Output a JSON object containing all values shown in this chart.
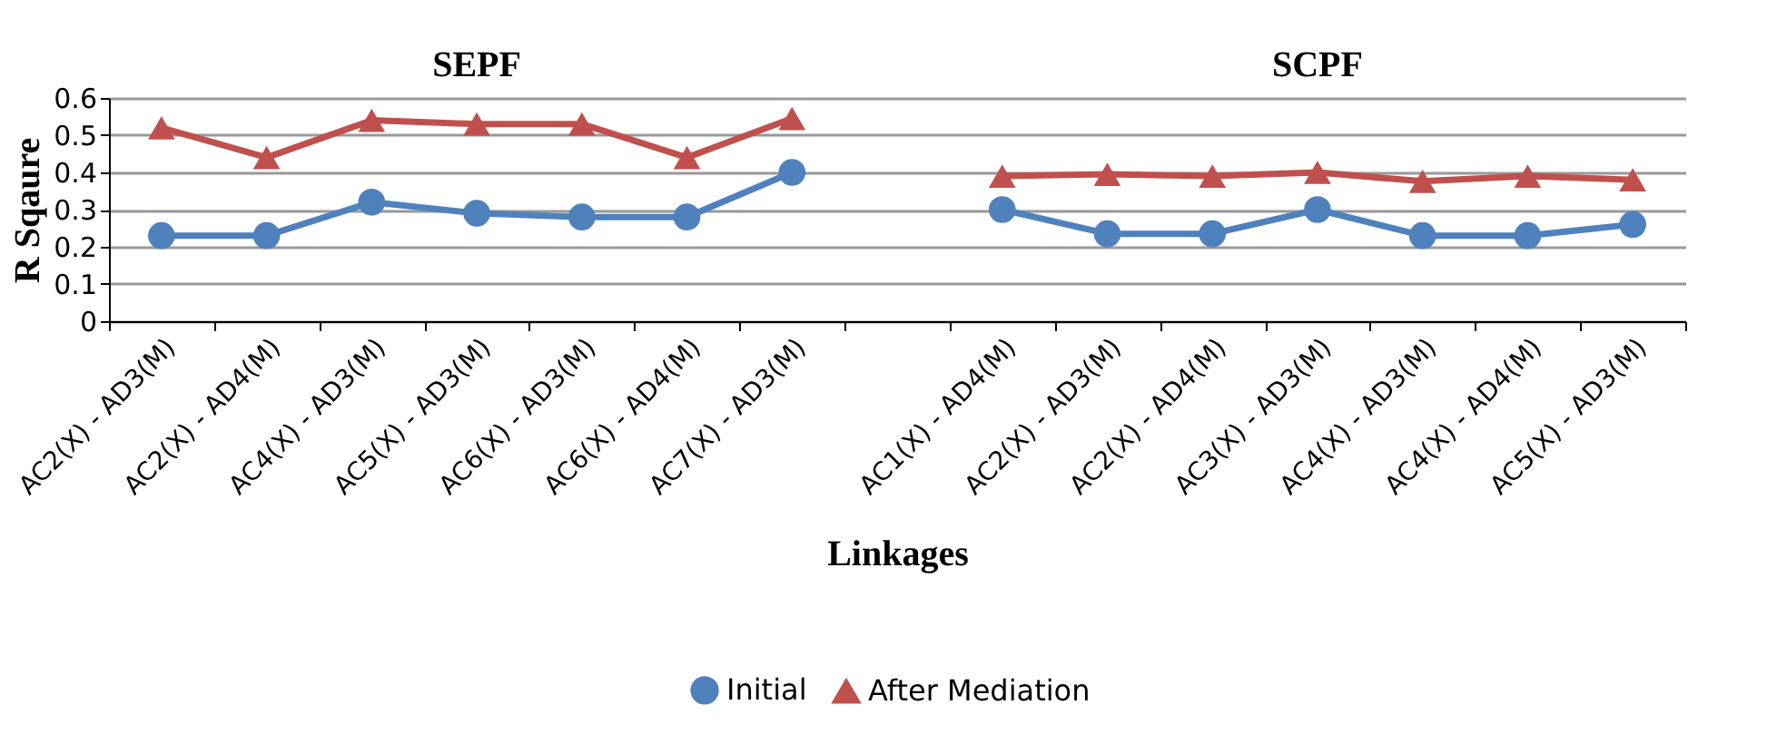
{
  "chart_data": {
    "type": "line",
    "categories": [
      "AC2(X) - AD3(M)",
      "AC2(X) - AD4(M)",
      "AC4(X) - AD3(M)",
      "AC5(X) - AD3(M)",
      "AC6(X) - AD3(M)",
      "AC6(X) - AD4(M)",
      "AC7(X) - AD3(M)",
      null,
      "AC1(X) - AD4(M)",
      "AC2(X) - AD3(M)",
      "AC2(X) - AD4(M)",
      "AC3(X) - AD3(M)",
      "AC4(X) - AD3(M)",
      "AC4(X) - AD4(M)",
      "AC5(X) - AD3(M)"
    ],
    "series": [
      {
        "name": "Initial",
        "color": "#4f81bd",
        "marker": "circle",
        "values": [
          0.23,
          0.23,
          0.32,
          0.29,
          0.28,
          0.28,
          0.4,
          null,
          0.3,
          0.235,
          0.235,
          0.3,
          0.23,
          0.23,
          0.26
        ]
      },
      {
        "name": "After Mediation",
        "color": "#c0504d",
        "marker": "triangle",
        "values": [
          0.52,
          0.44,
          0.54,
          0.53,
          0.53,
          0.44,
          0.545,
          null,
          0.39,
          0.395,
          0.39,
          0.4,
          0.376,
          0.39,
          0.38
        ]
      }
    ],
    "xlabel": "Linkages",
    "ylabel": "R Sqaure",
    "ylim": [
      0,
      0.6
    ],
    "yticks": [
      0,
      0.1,
      0.2,
      0.3,
      0.4,
      0.5,
      0.6
    ],
    "grid": "y",
    "legend": "bottom",
    "line_style": "solid",
    "annotations": [
      "SEPF",
      "SCPF"
    ]
  }
}
